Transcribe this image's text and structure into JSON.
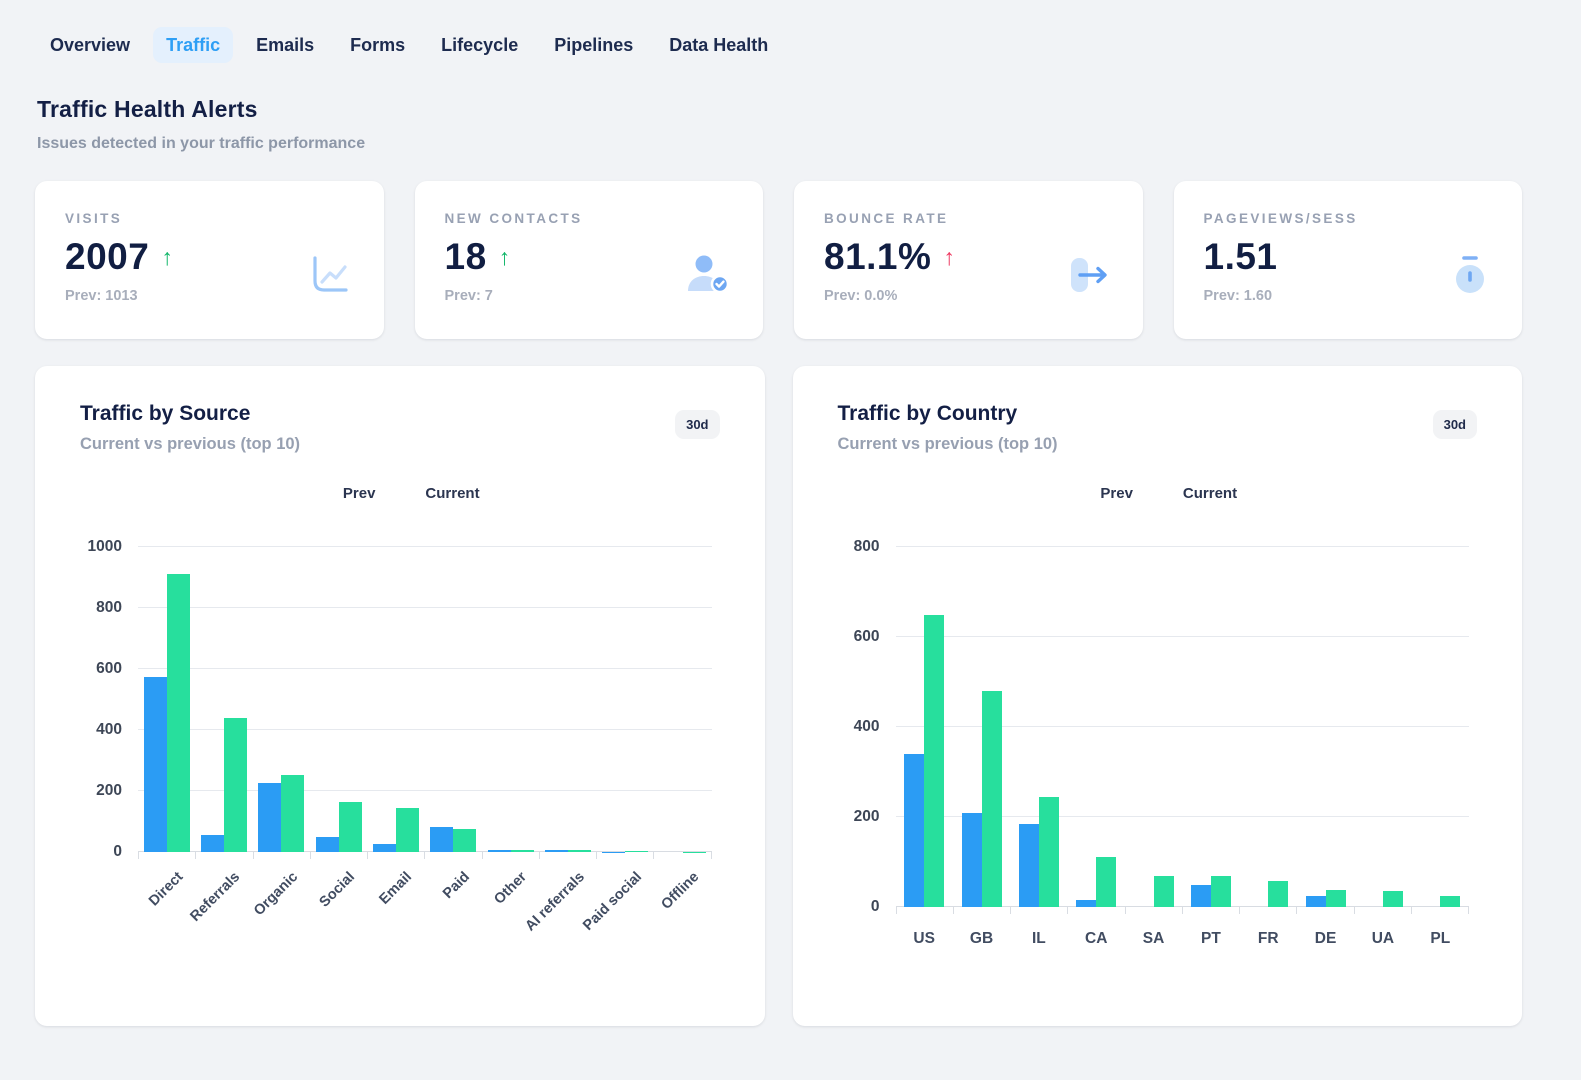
{
  "nav": {
    "tabs": [
      {
        "label": "Overview",
        "active": false
      },
      {
        "label": "Traffic",
        "active": true
      },
      {
        "label": "Emails",
        "active": false
      },
      {
        "label": "Forms",
        "active": false
      },
      {
        "label": "Lifecycle",
        "active": false
      },
      {
        "label": "Pipelines",
        "active": false
      },
      {
        "label": "Data Health",
        "active": false
      }
    ]
  },
  "header": {
    "title": "Traffic Health Alerts",
    "subtitle": "Issues detected in your traffic performance"
  },
  "ui": {
    "up_arrow": "↑"
  },
  "kpis": [
    {
      "label": "VISITS",
      "value": "2007",
      "trend": "up",
      "trend_color": "#12b76a",
      "prev": "Prev: 1013",
      "icon": "line-chart"
    },
    {
      "label": "NEW CONTACTS",
      "value": "18",
      "trend": "up",
      "trend_color": "#12b76a",
      "prev": "Prev: 7",
      "icon": "contact-check"
    },
    {
      "label": "BOUNCE RATE",
      "value": "81.1%",
      "trend": "up",
      "trend_color": "#ee3a62",
      "prev": "Prev: 0.0%",
      "icon": "exit-arrow"
    },
    {
      "label": "PAGEVIEWS/SESS",
      "value": "1.51",
      "trend": null,
      "trend_color": null,
      "prev": "Prev: 1.60",
      "icon": "stopwatch"
    }
  ],
  "colors": {
    "prev_bar": "#2b9cf4",
    "current_bar": "#27df9d",
    "accent_blue": "#2e9ff5",
    "navy_text": "#131f45",
    "page_background": "#f1f3f6"
  },
  "chart_data": [
    {
      "type": "bar",
      "title": "Traffic by Source",
      "subtitle": "Current vs previous (top 10)",
      "period_badge": "30d",
      "legend_position": "top",
      "grid": true,
      "ylim": [
        0,
        1000
      ],
      "yticks": [
        0,
        200,
        400,
        600,
        800,
        1000
      ],
      "categories": [
        "Direct",
        "Referrals",
        "Organic",
        "Social",
        "Email",
        "Paid",
        "Other",
        "AI referrals",
        "Paid social",
        "Offline"
      ],
      "series": [
        {
          "name": "Prev",
          "values": [
            575,
            55,
            225,
            48,
            25,
            82,
            5,
            7,
            1,
            0
          ]
        },
        {
          "name": "Current",
          "values": [
            910,
            440,
            252,
            165,
            145,
            75,
            5,
            5,
            3,
            1
          ]
        }
      ]
    },
    {
      "type": "bar",
      "title": "Traffic by Country",
      "subtitle": "Current vs previous (top 10)",
      "period_badge": "30d",
      "legend_position": "top",
      "grid": true,
      "ylim": [
        0,
        800
      ],
      "yticks": [
        0,
        200,
        400,
        600,
        800
      ],
      "categories": [
        "US",
        "GB",
        "IL",
        "CA",
        "SA",
        "PT",
        "FR",
        "DE",
        "UA",
        "PL"
      ],
      "series": [
        {
          "name": "Prev",
          "values": [
            340,
            210,
            185,
            15,
            0,
            50,
            0,
            25,
            0,
            0
          ]
        },
        {
          "name": "Current",
          "values": [
            650,
            480,
            245,
            112,
            70,
            68,
            58,
            38,
            35,
            24
          ]
        }
      ]
    }
  ]
}
